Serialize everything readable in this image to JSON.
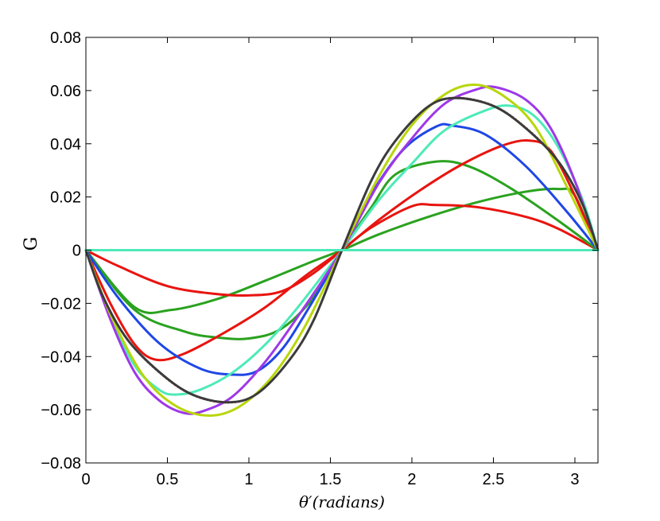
{
  "chart_data": {
    "type": "line",
    "xlabel": "θ′(radians)",
    "ylabel": "G",
    "xlim": [
      0,
      3.1416
    ],
    "ylim": [
      -0.08,
      0.08
    ],
    "xticks": [
      0,
      0.5,
      1,
      1.5,
      2,
      2.5,
      3
    ],
    "xtick_labels": [
      "0",
      "0.5",
      "1",
      "1.5",
      "2",
      "2.5",
      "3"
    ],
    "yticks": [
      -0.08,
      -0.06,
      -0.04,
      -0.02,
      0,
      0.02,
      0.04,
      0.06,
      0.08
    ],
    "ytick_labels": [
      "−0.08",
      "−0.06",
      "−0.04",
      "−0.02",
      "0",
      "0.02",
      "0.04",
      "0.06",
      "0.08"
    ],
    "grid": false,
    "series": [
      {
        "color": "#2aa21f",
        "style": "solid",
        "points": [
          [
            0,
            0
          ],
          [
            0.3,
            -0.0215
          ],
          [
            0.52,
            -0.0225
          ],
          [
            0.8,
            -0.0185
          ],
          [
            1.1,
            -0.0115
          ],
          [
            1.4,
            -0.004
          ],
          [
            1.5708,
            0
          ],
          [
            1.8,
            0.006
          ],
          [
            2.1,
            0.0125
          ],
          [
            2.4,
            0.018
          ],
          [
            2.7,
            0.022
          ],
          [
            2.9,
            0.023
          ],
          [
            3.0,
            0.0205
          ],
          [
            3.1416,
            0
          ]
        ]
      },
      {
        "color": "#e8140f",
        "style": "solid",
        "points": [
          [
            0,
            0
          ],
          [
            0.2,
            -0.006
          ],
          [
            0.5,
            -0.0135
          ],
          [
            0.8,
            -0.0165
          ],
          [
            1.0,
            -0.017
          ],
          [
            1.2,
            -0.0155
          ],
          [
            1.4,
            -0.0085
          ],
          [
            1.5708,
            0
          ],
          [
            1.75,
            0.0085
          ],
          [
            2.0,
            0.0165
          ],
          [
            2.14,
            0.017
          ],
          [
            2.4,
            0.0162
          ],
          [
            2.7,
            0.0125
          ],
          [
            2.9,
            0.008
          ],
          [
            3.1416,
            0
          ]
        ]
      },
      {
        "color": "#2aa21f",
        "style": "solid",
        "points": [
          [
            0,
            0
          ],
          [
            0.3,
            -0.0225
          ],
          [
            0.6,
            -0.0305
          ],
          [
            0.8,
            -0.0328
          ],
          [
            1.0,
            -0.0332
          ],
          [
            1.2,
            -0.0295
          ],
          [
            1.4,
            -0.0175
          ],
          [
            1.5708,
            0
          ],
          [
            1.75,
            0.016
          ],
          [
            1.9,
            0.0285
          ],
          [
            2.15,
            0.0333
          ],
          [
            2.35,
            0.0315
          ],
          [
            2.6,
            0.0235
          ],
          [
            2.9,
            0.011
          ],
          [
            3.1416,
            0
          ]
        ]
      },
      {
        "color": "#e8140f",
        "style": "solid",
        "points": [
          [
            0,
            0
          ],
          [
            0.15,
            -0.02
          ],
          [
            0.3,
            -0.0355
          ],
          [
            0.43,
            -0.0412
          ],
          [
            0.6,
            -0.039
          ],
          [
            0.85,
            -0.031
          ],
          [
            1.1,
            -0.0215
          ],
          [
            1.35,
            -0.0095
          ],
          [
            1.5708,
            0
          ],
          [
            1.8,
            0.0115
          ],
          [
            2.05,
            0.0225
          ],
          [
            2.3,
            0.032
          ],
          [
            2.55,
            0.0392
          ],
          [
            2.72,
            0.0412
          ],
          [
            2.85,
            0.0375
          ],
          [
            3.0,
            0.0205
          ],
          [
            3.1416,
            0
          ]
        ]
      },
      {
        "color": "#1f47e6",
        "style": "solid",
        "points": [
          [
            0,
            0
          ],
          [
            0.2,
            -0.018
          ],
          [
            0.45,
            -0.035
          ],
          [
            0.7,
            -0.0445
          ],
          [
            0.9,
            -0.0468
          ],
          [
            1.05,
            -0.0455
          ],
          [
            1.2,
            -0.0375
          ],
          [
            1.35,
            -0.0235
          ],
          [
            1.5708,
            0
          ],
          [
            1.75,
            0.021
          ],
          [
            1.95,
            0.038
          ],
          [
            2.15,
            0.0465
          ],
          [
            2.25,
            0.0468
          ],
          [
            2.45,
            0.0435
          ],
          [
            2.7,
            0.0315
          ],
          [
            2.95,
            0.0145
          ],
          [
            3.1416,
            0
          ]
        ]
      },
      {
        "color": "#4deab8",
        "style": "solid",
        "points": [
          [
            0,
            0
          ],
          [
            0.15,
            -0.025
          ],
          [
            0.3,
            -0.0435
          ],
          [
            0.45,
            -0.0525
          ],
          [
            0.55,
            -0.0543
          ],
          [
            0.7,
            -0.0525
          ],
          [
            0.9,
            -0.046
          ],
          [
            1.1,
            -0.0355
          ],
          [
            1.3,
            -0.0215
          ],
          [
            1.5708,
            0
          ],
          [
            1.8,
            0.019
          ],
          [
            2.0,
            0.0325
          ],
          [
            2.2,
            0.045
          ],
          [
            2.45,
            0.0525
          ],
          [
            2.6,
            0.0543
          ],
          [
            2.75,
            0.0505
          ],
          [
            2.9,
            0.0385
          ],
          [
            3.05,
            0.0185
          ],
          [
            3.1416,
            0
          ]
        ]
      },
      {
        "color": "#9e38e8",
        "style": "solid",
        "points": [
          [
            0,
            0
          ],
          [
            0.15,
            -0.026
          ],
          [
            0.3,
            -0.046
          ],
          [
            0.45,
            -0.0565
          ],
          [
            0.6,
            -0.0612
          ],
          [
            0.72,
            -0.0605
          ],
          [
            0.9,
            -0.055
          ],
          [
            1.1,
            -0.042
          ],
          [
            1.3,
            -0.025
          ],
          [
            1.5708,
            0
          ],
          [
            1.8,
            0.0255
          ],
          [
            2.0,
            0.042
          ],
          [
            2.2,
            0.055
          ],
          [
            2.4,
            0.0605
          ],
          [
            2.52,
            0.0612
          ],
          [
            2.7,
            0.0565
          ],
          [
            2.85,
            0.046
          ],
          [
            3.0,
            0.026
          ],
          [
            3.1416,
            0
          ]
        ]
      },
      {
        "color": "#b8d60a",
        "style": "solid",
        "points": [
          [
            0,
            0
          ],
          [
            0.15,
            -0.024
          ],
          [
            0.35,
            -0.047
          ],
          [
            0.55,
            -0.0585
          ],
          [
            0.76,
            -0.0622
          ],
          [
            0.95,
            -0.0585
          ],
          [
            1.15,
            -0.047
          ],
          [
            1.35,
            -0.028
          ],
          [
            1.5708,
            0
          ],
          [
            1.8,
            0.028
          ],
          [
            2.0,
            0.047
          ],
          [
            2.2,
            0.0585
          ],
          [
            2.38,
            0.0622
          ],
          [
            2.55,
            0.0585
          ],
          [
            2.75,
            0.047
          ],
          [
            2.95,
            0.024
          ],
          [
            3.1416,
            0
          ]
        ]
      },
      {
        "color": "#c8766a",
        "style": "dotted",
        "points": [
          [
            0,
            0
          ],
          [
            0.1,
            -0.0172
          ],
          [
            0.25,
            -0.0335
          ],
          [
            0.45,
            -0.0462
          ],
          [
            0.65,
            -0.0545
          ],
          [
            0.87,
            -0.0575
          ],
          [
            1.05,
            -0.0542
          ],
          [
            1.25,
            -0.0415
          ],
          [
            1.4,
            -0.0262
          ],
          [
            1.5708,
            0
          ],
          [
            1.75,
            0.0262
          ],
          [
            1.9,
            0.0415
          ],
          [
            2.1,
            0.0542
          ],
          [
            2.27,
            0.0575
          ],
          [
            2.5,
            0.0545
          ],
          [
            2.7,
            0.0462
          ],
          [
            2.9,
            0.0335
          ],
          [
            3.05,
            0.0172
          ],
          [
            3.1416,
            0
          ]
        ]
      },
      {
        "color": "#3b3b3b",
        "style": "solid",
        "points": [
          [
            0,
            0
          ],
          [
            0.1,
            -0.0168
          ],
          [
            0.25,
            -0.0332
          ],
          [
            0.45,
            -0.0458
          ],
          [
            0.65,
            -0.0542
          ],
          [
            0.87,
            -0.0572
          ],
          [
            1.05,
            -0.054
          ],
          [
            1.25,
            -0.0412
          ],
          [
            1.4,
            -0.026
          ],
          [
            1.5708,
            0
          ],
          [
            1.75,
            0.026
          ],
          [
            1.9,
            0.0412
          ],
          [
            2.1,
            0.054
          ],
          [
            2.27,
            0.0572
          ],
          [
            2.5,
            0.0542
          ],
          [
            2.7,
            0.0458
          ],
          [
            2.9,
            0.0332
          ],
          [
            3.05,
            0.0168
          ],
          [
            3.1416,
            0
          ]
        ]
      },
      {
        "color": "#4deab8",
        "style": "solid",
        "points": [
          [
            0,
            0
          ],
          [
            3.1416,
            0
          ]
        ]
      }
    ]
  }
}
